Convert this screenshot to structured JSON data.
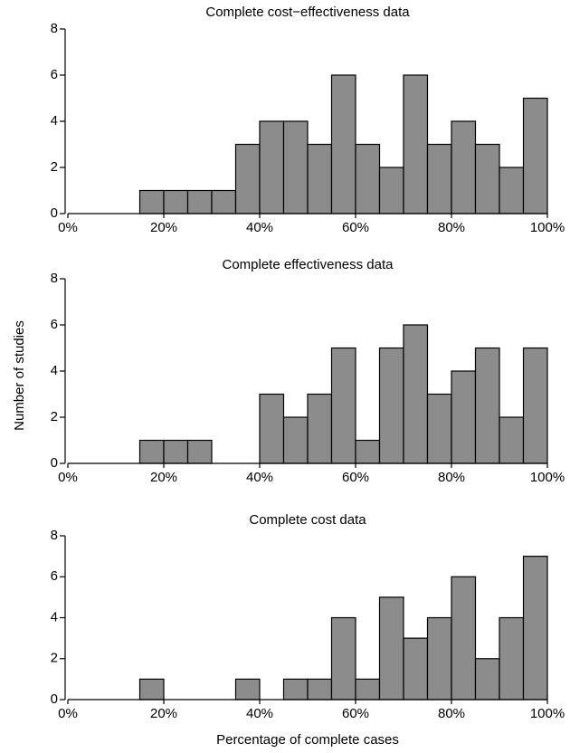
{
  "chart_data": [
    {
      "type": "histogram",
      "title": "Complete cost−effectiveness data",
      "bins": [
        0,
        5,
        10,
        15,
        20,
        25,
        30,
        35,
        40,
        45,
        50,
        55,
        60,
        65,
        70,
        75,
        80,
        85,
        90,
        95,
        100
      ],
      "counts": [
        0,
        0,
        0,
        1,
        1,
        1,
        1,
        3,
        4,
        4,
        3,
        6,
        3,
        2,
        6,
        3,
        4,
        3,
        2,
        5
      ],
      "color": "#8c8c8c",
      "xlim": [
        0,
        100
      ],
      "ylim": [
        0,
        8
      ],
      "xticks": [
        {
          "value": 0,
          "label": "0%"
        },
        {
          "value": 20,
          "label": "20%"
        },
        {
          "value": 40,
          "label": "40%"
        },
        {
          "value": 60,
          "label": "60%"
        },
        {
          "value": 80,
          "label": "80%"
        },
        {
          "value": 100,
          "label": "100%"
        }
      ],
      "yticks": [
        0,
        2,
        4,
        6,
        8
      ]
    },
    {
      "type": "histogram",
      "title": "Complete effectiveness data",
      "ylabel": "Number of studies",
      "bins": [
        0,
        5,
        10,
        15,
        20,
        25,
        30,
        35,
        40,
        45,
        50,
        55,
        60,
        65,
        70,
        75,
        80,
        85,
        90,
        95,
        100
      ],
      "counts": [
        0,
        0,
        0,
        1,
        1,
        1,
        0,
        0,
        3,
        2,
        3,
        5,
        1,
        5,
        6,
        3,
        4,
        5,
        2,
        5
      ],
      "color": "#8c8c8c",
      "xlim": [
        0,
        100
      ],
      "ylim": [
        0,
        8
      ],
      "xticks": [
        {
          "value": 0,
          "label": "0%"
        },
        {
          "value": 20,
          "label": "20%"
        },
        {
          "value": 40,
          "label": "40%"
        },
        {
          "value": 60,
          "label": "60%"
        },
        {
          "value": 80,
          "label": "80%"
        },
        {
          "value": 100,
          "label": "100%"
        }
      ],
      "yticks": [
        0,
        2,
        4,
        6,
        8
      ]
    },
    {
      "type": "histogram",
      "title": "Complete cost data",
      "xlabel": "Percentage of complete cases",
      "bins": [
        0,
        5,
        10,
        15,
        20,
        25,
        30,
        35,
        40,
        45,
        50,
        55,
        60,
        65,
        70,
        75,
        80,
        85,
        90,
        95,
        100
      ],
      "counts": [
        0,
        0,
        0,
        1,
        0,
        0,
        0,
        1,
        0,
        1,
        1,
        4,
        1,
        5,
        3,
        4,
        6,
        2,
        4,
        7
      ],
      "color": "#8c8c8c",
      "xlim": [
        0,
        100
      ],
      "ylim": [
        0,
        8
      ],
      "xticks": [
        {
          "value": 0,
          "label": "0%"
        },
        {
          "value": 20,
          "label": "20%"
        },
        {
          "value": 40,
          "label": "40%"
        },
        {
          "value": 60,
          "label": "60%"
        },
        {
          "value": 80,
          "label": "80%"
        },
        {
          "value": 100,
          "label": "100%"
        }
      ],
      "yticks": [
        0,
        2,
        4,
        6,
        8
      ]
    }
  ]
}
